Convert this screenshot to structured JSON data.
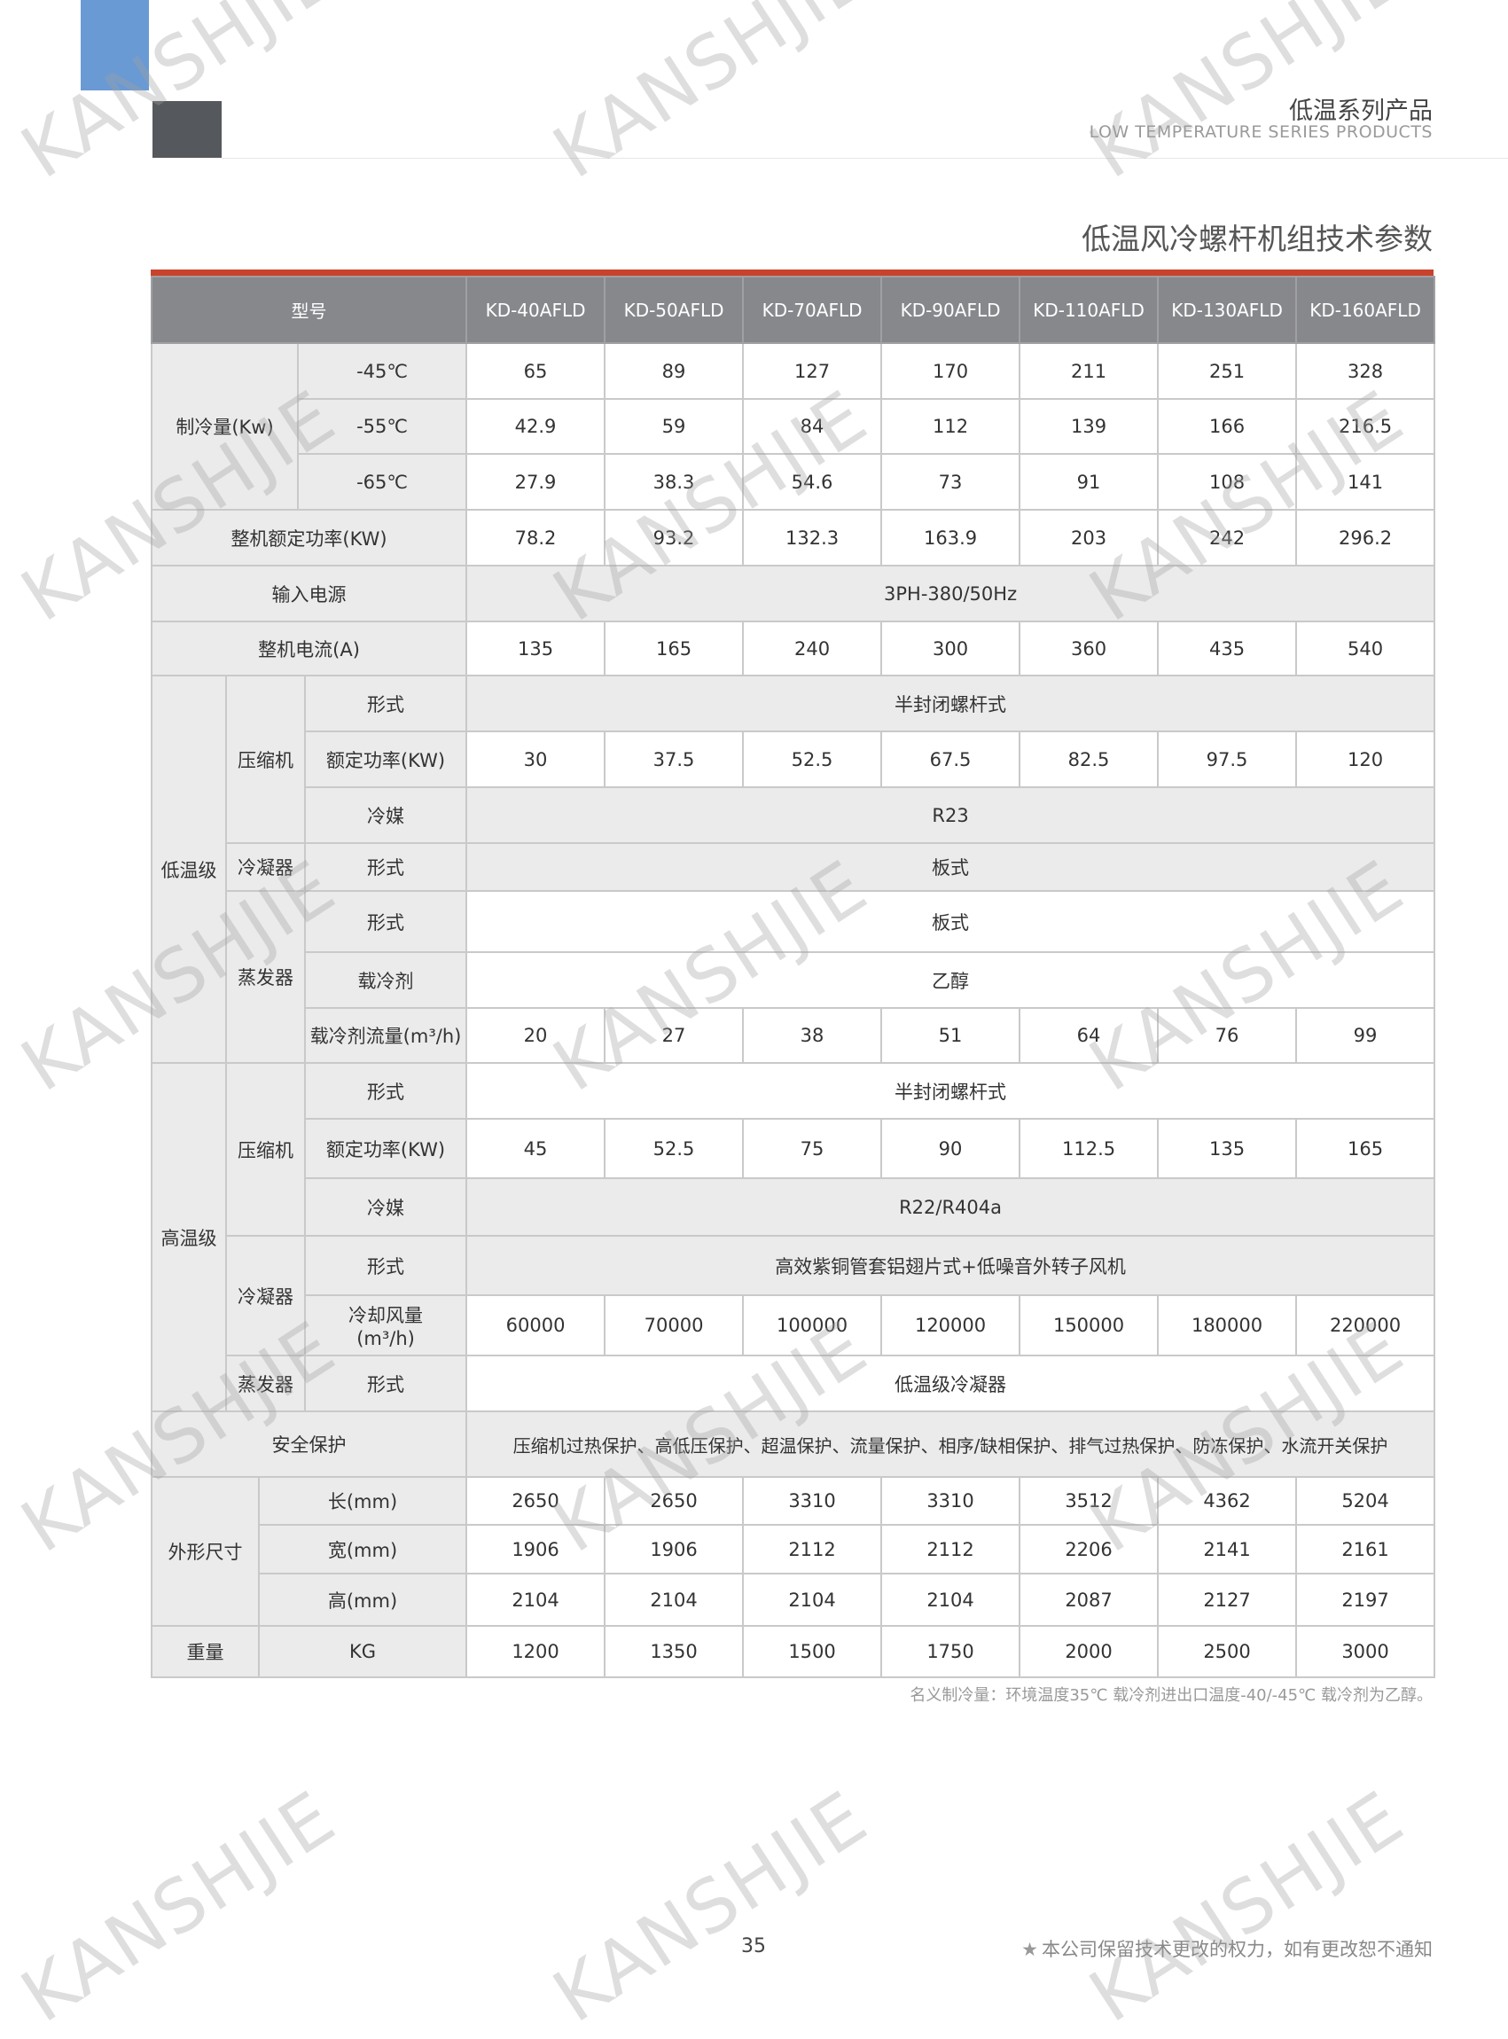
{
  "header": {
    "series_cn": "低温系列产品",
    "series_en": "LOW TEMPERATURE SERIES PRODUCTS",
    "title": "低温风冷螺杆机组技术参数"
  },
  "watermark": "KANSHJIE",
  "table": {
    "model_label": "型号",
    "models": [
      "KD-40AFLD",
      "KD-50AFLD",
      "KD-70AFLD",
      "KD-90AFLD",
      "KD-110AFLD",
      "KD-130AFLD",
      "KD-160AFLD"
    ],
    "cooling": {
      "label": "制冷量(Kw)",
      "rows": [
        {
          "temp": "-45℃",
          "values": [
            "65",
            "89",
            "127",
            "170",
            "211",
            "251",
            "328"
          ]
        },
        {
          "temp": "-55℃",
          "values": [
            "42.9",
            "59",
            "84",
            "112",
            "139",
            "166",
            "216.5"
          ]
        },
        {
          "temp": "-65℃",
          "values": [
            "27.9",
            "38.3",
            "54.6",
            "73",
            "91",
            "108",
            "141"
          ]
        }
      ]
    },
    "rated_power": {
      "label": "整机额定功率(KW)",
      "values": [
        "78.2",
        "93.2",
        "132.3",
        "163.9",
        "203",
        "242",
        "296.2"
      ]
    },
    "power_supply": {
      "label": "输入电源",
      "value": "3PH-380/50Hz"
    },
    "current": {
      "label": "整机电流(A)",
      "values": [
        "135",
        "165",
        "240",
        "300",
        "360",
        "435",
        "540"
      ]
    },
    "low_stage": {
      "label": "低温级",
      "compressor": {
        "label": "压缩机",
        "type_label": "形式",
        "type": "半封闭螺杆式",
        "power_label": "额定功率(KW)",
        "power": [
          "30",
          "37.5",
          "52.5",
          "67.5",
          "82.5",
          "97.5",
          "120"
        ],
        "refrigerant_label": "冷媒",
        "refrigerant": "R23"
      },
      "condenser": {
        "label": "冷凝器",
        "type_label": "形式",
        "type": "板式"
      },
      "evaporator": {
        "label": "蒸发器",
        "type_label": "形式",
        "type": "板式",
        "coolant_label": "载冷剂",
        "coolant": "乙醇",
        "flow_label": "载冷剂流量(m³/h)",
        "flow": [
          "20",
          "27",
          "38",
          "51",
          "64",
          "76",
          "99"
        ]
      }
    },
    "high_stage": {
      "label": "高温级",
      "compressor": {
        "label": "压缩机",
        "type_label": "形式",
        "type": "半封闭螺杆式",
        "power_label": "额定功率(KW)",
        "power": [
          "45",
          "52.5",
          "75",
          "90",
          "112.5",
          "135",
          "165"
        ],
        "refrigerant_label": "冷媒",
        "refrigerant": "R22/R404a"
      },
      "condenser": {
        "label": "冷凝器",
        "type_label": "形式",
        "type": "高效紫铜管套铝翅片式+低噪音外转子风机",
        "air_label_1": "冷却风量",
        "air_label_2": "(m³/h)",
        "air": [
          "60000",
          "70000",
          "100000",
          "120000",
          "150000",
          "180000",
          "220000"
        ]
      },
      "evaporator": {
        "label": "蒸发器",
        "type_label": "形式",
        "type": "低温级冷凝器"
      }
    },
    "safety": {
      "label": "安全保护",
      "value": "压缩机过热保护、高低压保护、超温保护、流量保护、相序/缺相保护、排气过热保护、防冻保护、水流开关保护"
    },
    "dimensions": {
      "label": "外形尺寸",
      "rows": [
        {
          "label": "长(mm)",
          "values": [
            "2650",
            "2650",
            "3310",
            "3310",
            "3512",
            "4362",
            "5204"
          ]
        },
        {
          "label": "宽(mm)",
          "values": [
            "1906",
            "1906",
            "2112",
            "2112",
            "2206",
            "2141",
            "2161"
          ]
        },
        {
          "label": "高(mm)",
          "values": [
            "2104",
            "2104",
            "2104",
            "2104",
            "2087",
            "2127",
            "2197"
          ]
        }
      ]
    },
    "weight": {
      "label": "重量",
      "unit": "KG",
      "values": [
        "1200",
        "1350",
        "1500",
        "1750",
        "2000",
        "2500",
        "3000"
      ]
    }
  },
  "note": "名义制冷量：环境温度35℃  载冷剂进出口温度-40/-45℃  载冷剂为乙醇。",
  "footer": {
    "page": "35",
    "notice": "本公司保留技术更改的权力，如有更改恕不通知",
    "notice_icon": "star-icon"
  }
}
